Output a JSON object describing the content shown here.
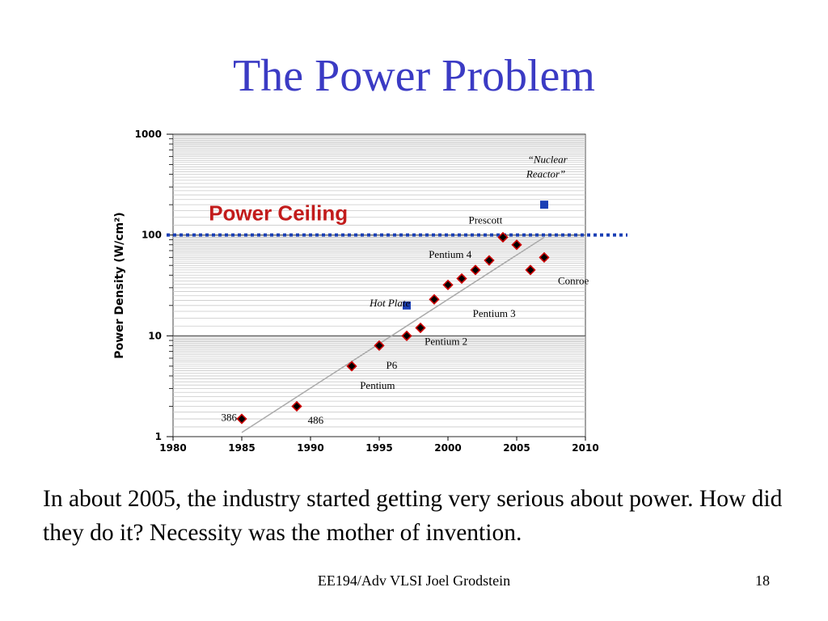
{
  "slide": {
    "title": "The Power Problem",
    "body": "In about 2005, the industry started getting very serious about power. How did they do it? Necessity was the mother of invention.",
    "footer": "EE194/Adv VLSI Joel Grodstein",
    "page_number": "18"
  },
  "chart_data": {
    "type": "scatter",
    "title": "",
    "xlabel": "",
    "ylabel": "Power Density (W/cm²)",
    "y_scale": "log",
    "xlim": [
      1980,
      2010
    ],
    "ylim": [
      1,
      1000
    ],
    "x_ticks": [
      "1980",
      "1985",
      "1990",
      "1995",
      "2000",
      "2005",
      "2010"
    ],
    "y_ticks": [
      "1",
      "10",
      "100",
      "1000"
    ],
    "grid": "horizontal",
    "colors": {
      "cpu_marker": "#cc0000",
      "reference_marker": "#1a3fb5",
      "ceiling_line": "#1a3fb5",
      "ceiling_text": "#c21b1b",
      "trend_line": "#aaaaaa"
    },
    "power_ceiling": {
      "value": 100,
      "label": "Power Ceiling"
    },
    "cpu_points": [
      {
        "x": 1985,
        "y": 1.5
      },
      {
        "x": 1989,
        "y": 2.0
      },
      {
        "x": 1993,
        "y": 5.0
      },
      {
        "x": 1995,
        "y": 8.0
      },
      {
        "x": 1997,
        "y": 10.0
      },
      {
        "x": 1998,
        "y": 12.0
      },
      {
        "x": 1999,
        "y": 23.0
      },
      {
        "x": 2000,
        "y": 32.0
      },
      {
        "x": 2001,
        "y": 37.0
      },
      {
        "x": 2002,
        "y": 45.0
      },
      {
        "x": 2003,
        "y": 56.0
      },
      {
        "x": 2004,
        "y": 95.0
      },
      {
        "x": 2005,
        "y": 80.0
      },
      {
        "x": 2006,
        "y": 45.0
      },
      {
        "x": 2007,
        "y": 60.0
      }
    ],
    "reference_points": [
      {
        "x": 1997,
        "y": 20.0
      },
      {
        "x": 2007,
        "y": 200.0
      }
    ],
    "trend_line": {
      "from": [
        1985,
        1.1
      ],
      "to": [
        2007,
        95
      ]
    },
    "labels": [
      {
        "text": "386",
        "x": 1983.5,
        "y": 1.55,
        "style": "normal"
      },
      {
        "text": "486",
        "x": 1989.8,
        "y": 1.45,
        "style": "normal"
      },
      {
        "text": "Pentium",
        "x": 1993.6,
        "y": 3.2,
        "style": "normal"
      },
      {
        "text": "P6",
        "x": 1995.5,
        "y": 5.1,
        "style": "normal"
      },
      {
        "text": "Pentium 2",
        "x": 1998.3,
        "y": 8.8,
        "style": "normal"
      },
      {
        "text": "Pentium 3",
        "x": 2001.8,
        "y": 16.5,
        "style": "normal"
      },
      {
        "text": "Hot Plate",
        "x": 1994.3,
        "y": 21.0,
        "style": "italic"
      },
      {
        "text": "Pentium 4",
        "x": 1998.6,
        "y": 64.0,
        "style": "normal"
      },
      {
        "text": "Prescott",
        "x": 2001.5,
        "y": 140.0,
        "style": "normal"
      },
      {
        "text": "Conroe",
        "x": 2008.0,
        "y": 35.0,
        "style": "normal"
      },
      {
        "text": "“Nuclear",
        "x": 2005.8,
        "y": 560.0,
        "style": "italic"
      },
      {
        "text": "Reactor”",
        "x": 2005.7,
        "y": 400.0,
        "style": "italic"
      }
    ]
  }
}
